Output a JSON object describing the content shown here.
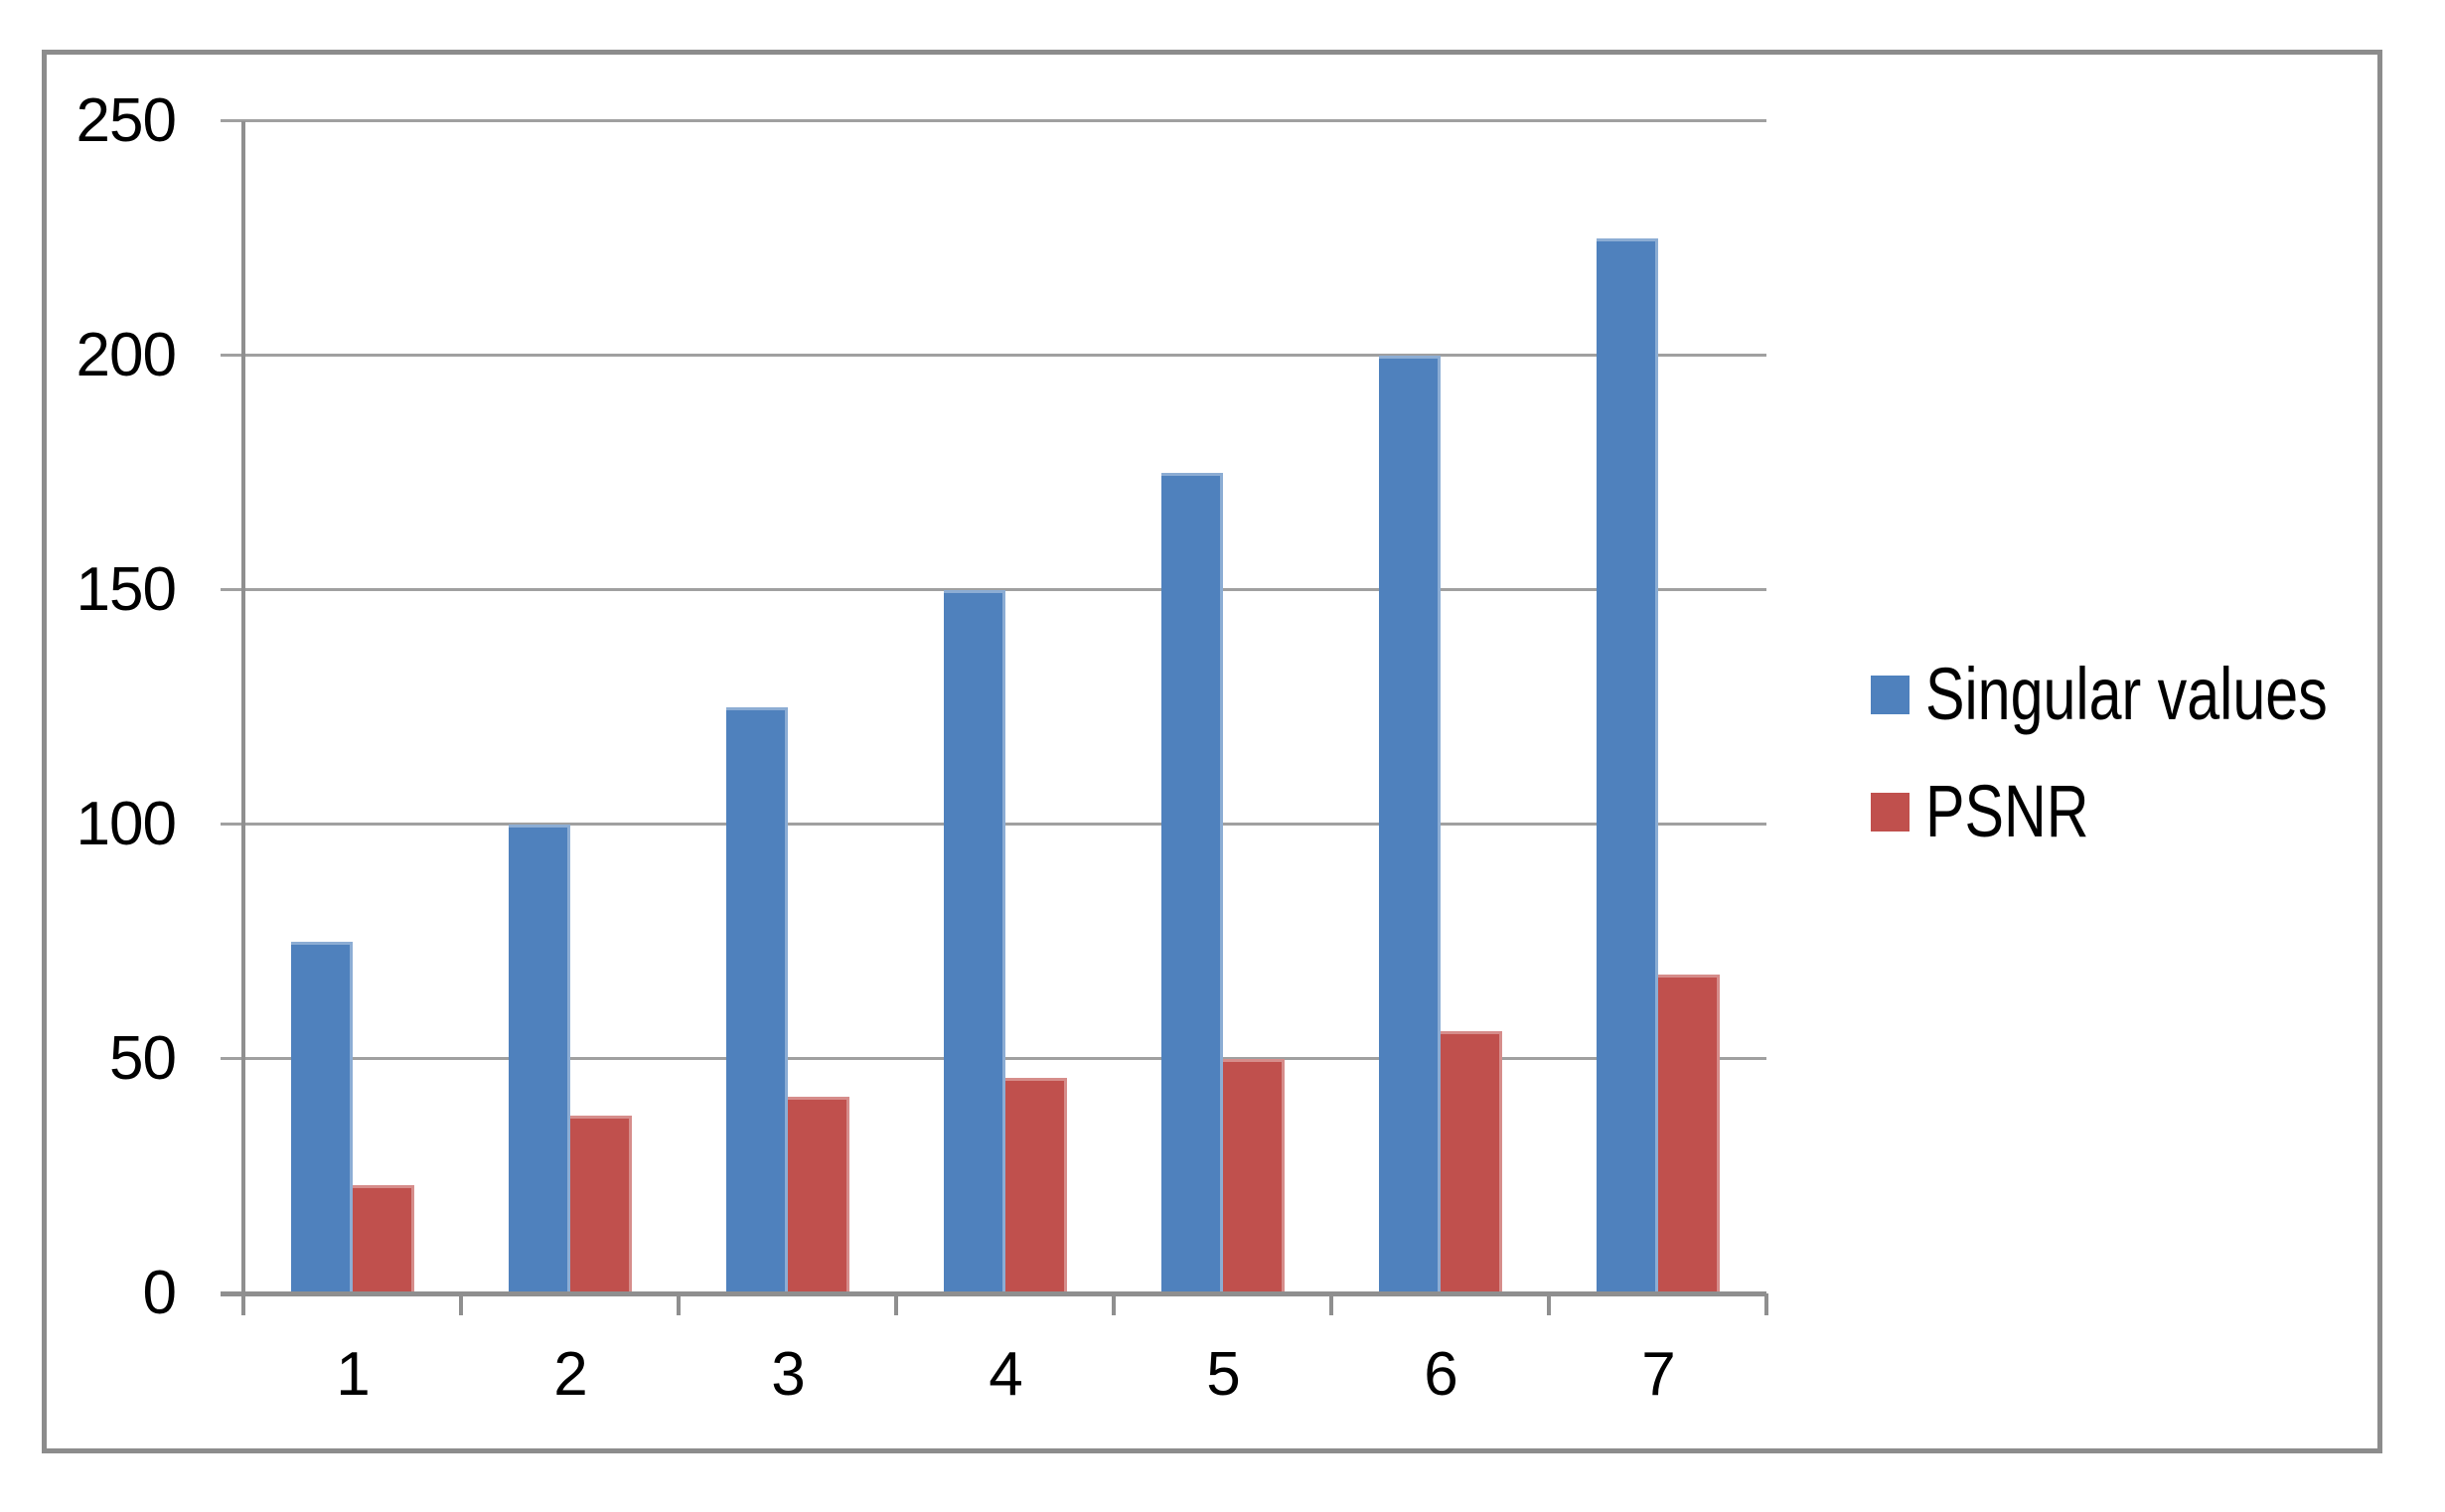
{
  "chart_data": {
    "type": "bar",
    "title": "",
    "xlabel": "",
    "ylabel": "",
    "categories": [
      "1",
      "2",
      "3",
      "4",
      "5",
      "6",
      "7"
    ],
    "series": [
      {
        "name": "Singular values",
        "color": "#4F81BD",
        "values": [
          75,
          100,
          125,
          150,
          175,
          200,
          225
        ]
      },
      {
        "name": "PSNR",
        "color": "#C0504D",
        "values": [
          23,
          38,
          42,
          46,
          50,
          56,
          68
        ]
      }
    ],
    "ylim": [
      0,
      250
    ],
    "ytick_interval": 50,
    "yticks": [
      "0",
      "50",
      "100",
      "150",
      "200",
      "250"
    ],
    "grid": true,
    "legend_position": "right",
    "gridline_color": "#a0a0a0",
    "axis_color": "#8f8f8f",
    "text_color": "#000000"
  }
}
